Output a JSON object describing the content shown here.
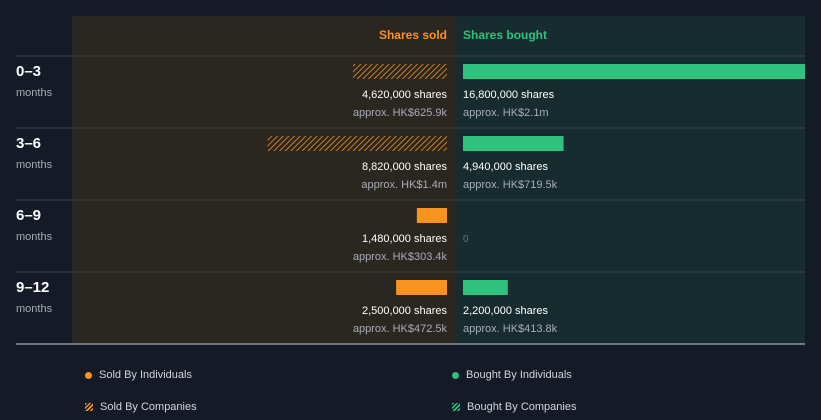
{
  "chart_data": {
    "type": "bar",
    "headers": {
      "sold": "Shares sold",
      "bought": "Shares bought"
    },
    "rows": [
      {
        "period": "0–3",
        "unit": "months",
        "sold_shares": 4620000,
        "sold_label": "4,620,000 shares",
        "sold_value": "approx. HK$625.9k",
        "sold_type": "companies",
        "bought_shares": 16800000,
        "bought_label": "16,800,000 shares",
        "bought_value": "approx. HK$2.1m",
        "bought_type": "individuals"
      },
      {
        "period": "3–6",
        "unit": "months",
        "sold_shares": 8820000,
        "sold_label": "8,820,000 shares",
        "sold_value": "approx. HK$1.4m",
        "sold_type": "companies",
        "bought_shares": 4940000,
        "bought_label": "4,940,000 shares",
        "bought_value": "approx. HK$719.5k",
        "bought_type": "individuals"
      },
      {
        "period": "6–9",
        "unit": "months",
        "sold_shares": 1480000,
        "sold_label": "1,480,000 shares",
        "sold_value": "approx. HK$303.4k",
        "sold_type": "individuals",
        "bought_shares": 0,
        "bought_label": "0",
        "bought_value": "",
        "bought_type": "individuals"
      },
      {
        "period": "9–12",
        "unit": "months",
        "sold_shares": 2500000,
        "sold_label": "2,500,000 shares",
        "sold_value": "approx. HK$472.5k",
        "sold_type": "individuals",
        "bought_shares": 2200000,
        "bought_label": "2,200,000 shares",
        "bought_value": "approx. HK$413.8k",
        "bought_type": "individuals"
      }
    ],
    "legend": [
      {
        "label": "Sold By Individuals",
        "color": "#f7931e",
        "style": "solid"
      },
      {
        "label": "Bought By Individuals",
        "color": "#2ec27e",
        "style": "solid"
      },
      {
        "label": "Sold By Companies",
        "color": "#f7931e",
        "style": "hatched"
      },
      {
        "label": "Bought By Companies",
        "color": "#2ec27e",
        "style": "hatched"
      }
    ],
    "colors": {
      "sold": "#f7931e",
      "bought": "#2ec27e",
      "sold_panel": "#2a2620",
      "bought_panel": "#172c2e",
      "background": "#151b26"
    }
  }
}
